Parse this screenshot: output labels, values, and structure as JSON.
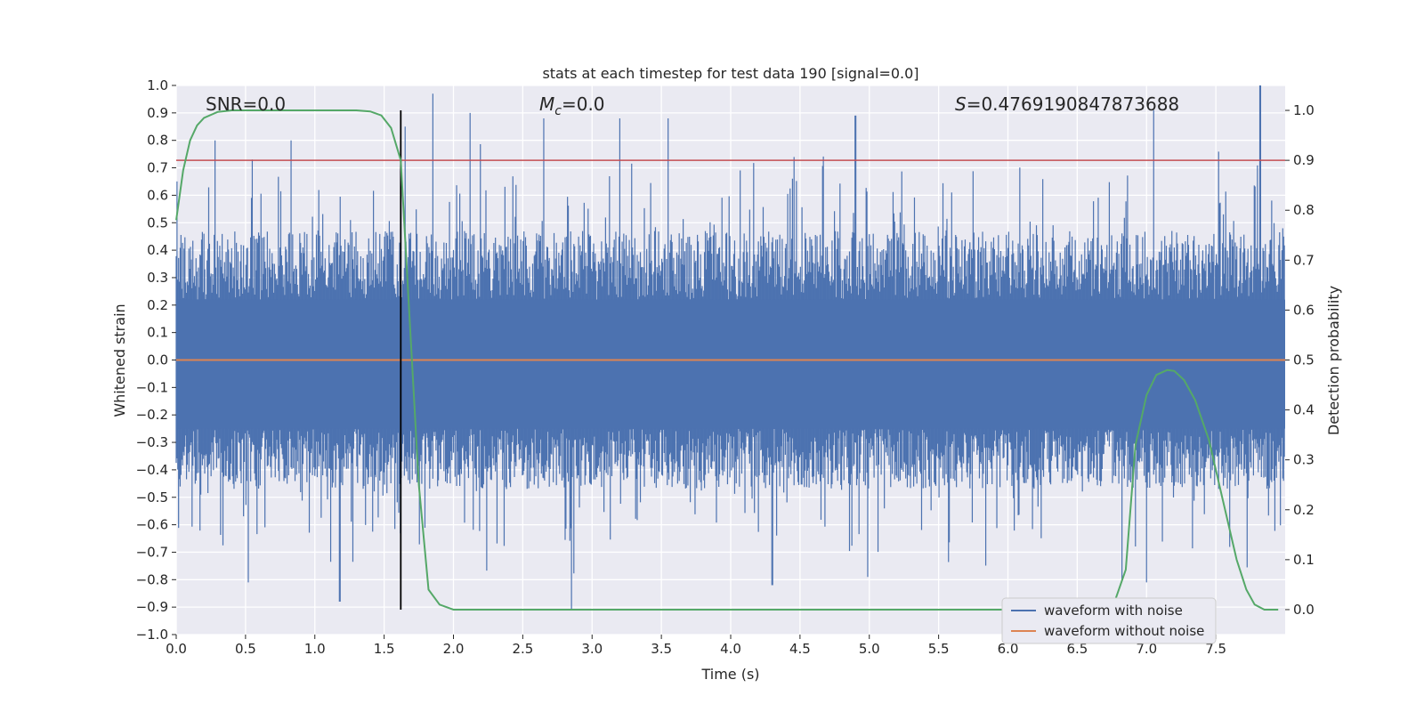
{
  "chart_data": {
    "type": "line",
    "title": "stats at each timestep for test data 190 [signal=0.0]",
    "xlabel": "Time (s)",
    "ylabel": "Whitened strain",
    "ylabel_right": "Detection probability",
    "xlim": [
      0.0,
      8.0
    ],
    "ylim": [
      -1.0,
      1.0
    ],
    "ylim_right": [
      -0.05,
      1.05
    ],
    "x_ticks": [
      "0.0",
      "0.5",
      "1.0",
      "1.5",
      "2.0",
      "2.5",
      "3.0",
      "3.5",
      "4.0",
      "4.5",
      "5.0",
      "5.5",
      "6.0",
      "6.5",
      "7.0",
      "7.5"
    ],
    "y_ticks": [
      "1.0",
      "0.9",
      "0.8",
      "0.7",
      "0.6",
      "0.5",
      "0.4",
      "0.3",
      "0.2",
      "0.1",
      "0.0",
      "-0.1",
      "-0.2",
      "-0.3",
      "-0.4",
      "-0.5",
      "-0.6",
      "-0.7",
      "-0.8",
      "-0.9",
      "-1.0"
    ],
    "y_ticks_right": [
      "1.0",
      "0.9",
      "0.8",
      "0.7",
      "0.6",
      "0.5",
      "0.4",
      "0.3",
      "0.2",
      "0.1",
      "0.0"
    ],
    "grid": true,
    "legend_position": "lower-right",
    "annotations": {
      "snr": "SNR=0.0",
      "mc_symbol": "M",
      "mc_sub": "c",
      "mc_value": "=0.0",
      "s_symbol": "S",
      "s_value": "=0.4769190847873688"
    },
    "threshold_probability": 0.9,
    "vline_time": 1.62,
    "colors": {
      "noise": "#4c72b0",
      "clean": "#dd8452",
      "probability": "#55a868",
      "threshold": "#c44e52",
      "background": "#eaeaf2",
      "vline": "#000000"
    },
    "series": [
      {
        "name": "waveform with noise",
        "description_values": "dense noise approx. in [-0.91, 1.0]",
        "envelope_peaks": [
          {
            "x": 0.28,
            "y": 0.8
          },
          {
            "x": 0.55,
            "y": 0.73
          },
          {
            "x": 0.83,
            "y": 0.8
          },
          {
            "x": 1.65,
            "y": 0.85
          },
          {
            "x": 1.85,
            "y": 0.97
          },
          {
            "x": 2.12,
            "y": 0.9
          },
          {
            "x": 2.65,
            "y": 0.88
          },
          {
            "x": 3.2,
            "y": 0.88
          },
          {
            "x": 3.55,
            "y": 0.88
          },
          {
            "x": 4.9,
            "y": 0.89
          },
          {
            "x": 7.05,
            "y": 0.91
          },
          {
            "x": 7.82,
            "y": 1.0
          },
          {
            "x": 0.52,
            "y": -0.81
          },
          {
            "x": 1.18,
            "y": -0.88
          },
          {
            "x": 2.85,
            "y": -0.91
          },
          {
            "x": 4.3,
            "y": -0.82
          },
          {
            "x": 7.0,
            "y": -0.81
          }
        ]
      },
      {
        "name": "waveform without noise",
        "x": [
          0.0,
          8.0
        ],
        "y": [
          0.0,
          0.0
        ]
      },
      {
        "name": "",
        "axis": "right",
        "x": [
          0.0,
          0.05,
          0.1,
          0.15,
          0.2,
          0.3,
          0.4,
          0.5,
          1.0,
          1.3,
          1.4,
          1.48,
          1.55,
          1.62,
          1.68,
          1.75,
          1.82,
          1.9,
          2.0,
          3.0,
          4.0,
          5.0,
          6.0,
          6.5,
          6.75,
          6.85,
          6.92,
          7.0,
          7.07,
          7.15,
          7.2,
          7.27,
          7.35,
          7.45,
          7.55,
          7.65,
          7.72,
          7.78,
          7.85,
          7.95
        ],
        "y": [
          0.78,
          0.88,
          0.94,
          0.97,
          0.985,
          0.997,
          1.0,
          1.0,
          1.0,
          1.0,
          0.998,
          0.99,
          0.965,
          0.9,
          0.6,
          0.25,
          0.04,
          0.01,
          0.0,
          0.0,
          0.0,
          0.0,
          0.0,
          0.0,
          0.0,
          0.08,
          0.33,
          0.43,
          0.47,
          0.48,
          0.478,
          0.46,
          0.42,
          0.34,
          0.22,
          0.1,
          0.04,
          0.01,
          0.0,
          0.0
        ]
      }
    ]
  }
}
